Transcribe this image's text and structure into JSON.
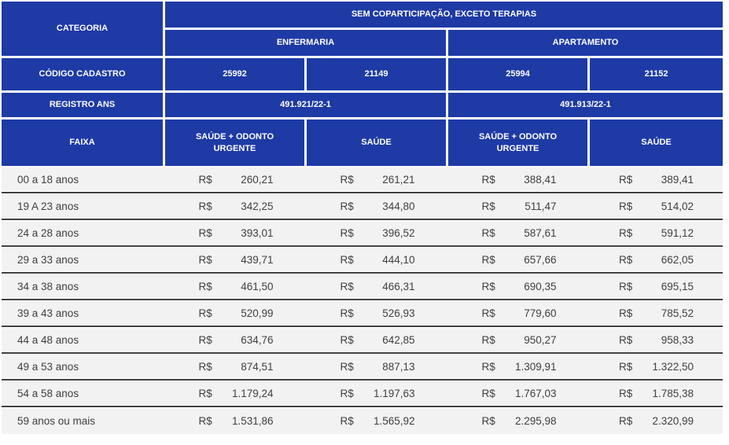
{
  "colors": {
    "header_blue": "#1e3aa5",
    "row_bg": "#f2f2f2",
    "row_border": "#3f3f3f",
    "text_dark": "#3f3f3f",
    "header_text": "#ffffff"
  },
  "table": {
    "category_label": "CATEGORIA",
    "plan_title": "SEM COPARTICIPAÇÃO, EXCETO TERAPIAS",
    "accommodations": [
      "ENFERMARIA",
      "APARTAMENTO"
    ],
    "codigo_cadastro_label": "CÓDIGO CADASTRO",
    "codes": [
      "25992",
      "21149",
      "25994",
      "21152"
    ],
    "registro_ans_label": "REGISTRO ANS",
    "registrations": [
      "491.921/22-1",
      "491.913/22-1"
    ],
    "faixa_label": "FAIXA",
    "plan_types": [
      "SAÚDE + ODONTO URGENTE",
      "SAÚDE",
      "SAÚDE + ODONTO URGENTE",
      "SAÚDE"
    ],
    "currency": "R$",
    "rows": [
      {
        "faixa": "00 a 18 anos",
        "values": [
          "260,21",
          "261,21",
          "388,41",
          "389,41"
        ]
      },
      {
        "faixa": "19 A 23 anos",
        "values": [
          "342,25",
          "344,80",
          "511,47",
          "514,02"
        ]
      },
      {
        "faixa": "24 a 28 anos",
        "values": [
          "393,01",
          "396,52",
          "587,61",
          "591,12"
        ]
      },
      {
        "faixa": "29 a 33 anos",
        "values": [
          "439,71",
          "444,10",
          "657,66",
          "662,05"
        ]
      },
      {
        "faixa": "34 a 38 anos",
        "values": [
          "461,50",
          "466,31",
          "690,35",
          "695,15"
        ]
      },
      {
        "faixa": "39 a 43 anos",
        "values": [
          "520,99",
          "526,93",
          "779,60",
          "785,52"
        ]
      },
      {
        "faixa": "44 a 48 anos",
        "values": [
          "634,76",
          "642,85",
          "950,27",
          "958,33"
        ]
      },
      {
        "faixa": "49 a 53 anos",
        "values": [
          "874,51",
          "887,13",
          "1.309,91",
          "1.322,50"
        ]
      },
      {
        "faixa": "54 a 58 anos",
        "values": [
          "1.179,24",
          "1.197,63",
          "1.767,03",
          "1.785,38"
        ]
      },
      {
        "faixa": "59 anos ou mais",
        "values": [
          "1.531,86",
          "1.565,92",
          "2.295,98",
          "2.320,99"
        ]
      }
    ]
  }
}
